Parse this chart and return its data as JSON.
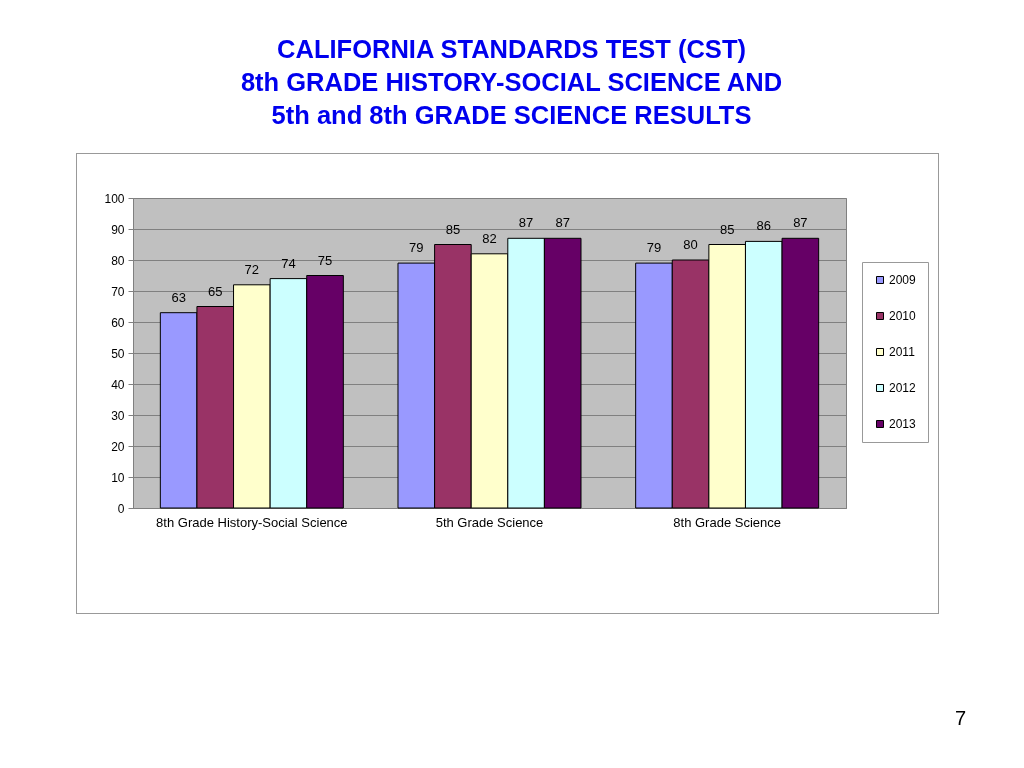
{
  "chart_data": {
    "type": "bar",
    "title": "CALIFORNIA STANDARDS TEST (CST)\n8th GRADE HISTORY-SOCIAL SCIENCE AND\n5th and 8th GRADE SCIENCE RESULTS",
    "categories": [
      "8th Grade History-Social Science",
      "5th Grade Science",
      "8th Grade Science"
    ],
    "series": [
      {
        "name": "2009",
        "color": "#9999ff",
        "values": [
          63,
          79,
          79
        ]
      },
      {
        "name": "2010",
        "color": "#993366",
        "values": [
          65,
          85,
          80
        ]
      },
      {
        "name": "2011",
        "color": "#ffffcc",
        "values": [
          72,
          82,
          85
        ]
      },
      {
        "name": "2012",
        "color": "#ccffff",
        "values": [
          74,
          87,
          86
        ]
      },
      {
        "name": "2013",
        "color": "#660066",
        "values": [
          75,
          87,
          87
        ]
      }
    ],
    "ylim": [
      0,
      100
    ],
    "yticks": [
      0,
      10,
      20,
      30,
      40,
      50,
      60,
      70,
      80,
      90,
      100
    ],
    "grid": "y",
    "legend": "right",
    "data_labels": true,
    "annotations": [
      "7"
    ]
  }
}
